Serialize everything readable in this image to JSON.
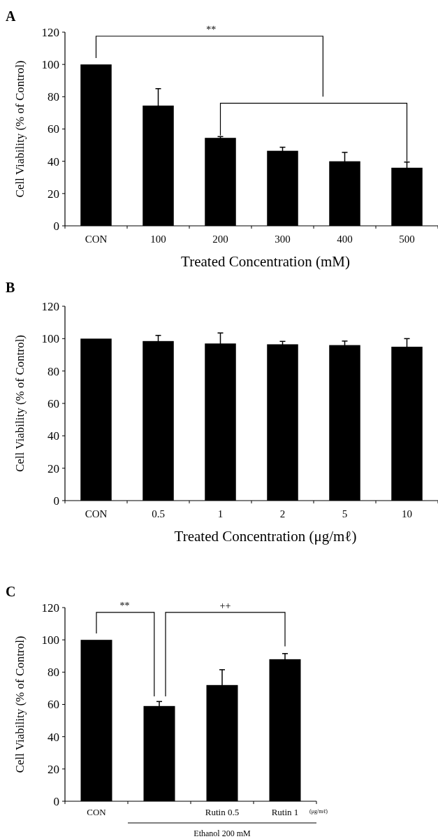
{
  "chart_data": [
    {
      "type": "bar",
      "title": "A",
      "xlabel": "Treated Concentration (mM)",
      "ylabel": "Cell Viability (% of Control)",
      "categories": [
        "CON",
        "100",
        "200",
        "300",
        "400",
        "500"
      ],
      "values": [
        100,
        74.5,
        54.5,
        46.5,
        40,
        36
      ],
      "errors": [
        null,
        10.5,
        0.8,
        2.2,
        5.5,
        3.5
      ],
      "color": "#000000",
      "ylim": [
        0,
        120
      ],
      "yticks": [
        0,
        20,
        40,
        60,
        80,
        100,
        120
      ],
      "grid": false,
      "annotations": [
        "**"
      ]
    },
    {
      "type": "bar",
      "title": "B",
      "xlabel": "Treated Concentration (μg/mℓ)",
      "ylabel": "Cell Viability (% of Control)",
      "categories": [
        "CON",
        "0.5",
        "1",
        "2",
        "5",
        "10"
      ],
      "values": [
        100,
        98.5,
        97,
        96.5,
        96,
        95
      ],
      "errors": [
        null,
        3.5,
        6.5,
        1.8,
        2.5,
        5
      ],
      "color": "#000000",
      "ylim": [
        0,
        120
      ],
      "yticks": [
        0,
        20,
        40,
        60,
        80,
        100,
        120
      ],
      "grid": false
    },
    {
      "type": "bar",
      "title": "C",
      "ylabel": "Cell Viability (% of Control)",
      "categories": [
        "CON",
        null,
        "Rutin 0.5",
        "Rutin 1"
      ],
      "values": [
        100,
        59,
        72,
        88
      ],
      "errors": [
        null,
        2.8,
        9.5,
        3.5
      ],
      "color": "#000000",
      "ylim": [
        0,
        120
      ],
      "yticks": [
        0,
        20,
        40,
        60,
        80,
        100,
        120
      ],
      "grid": false,
      "annotations": [
        "**",
        "++",
        "(μg/mℓ)",
        "Ethanol 200 mM"
      ]
    }
  ]
}
